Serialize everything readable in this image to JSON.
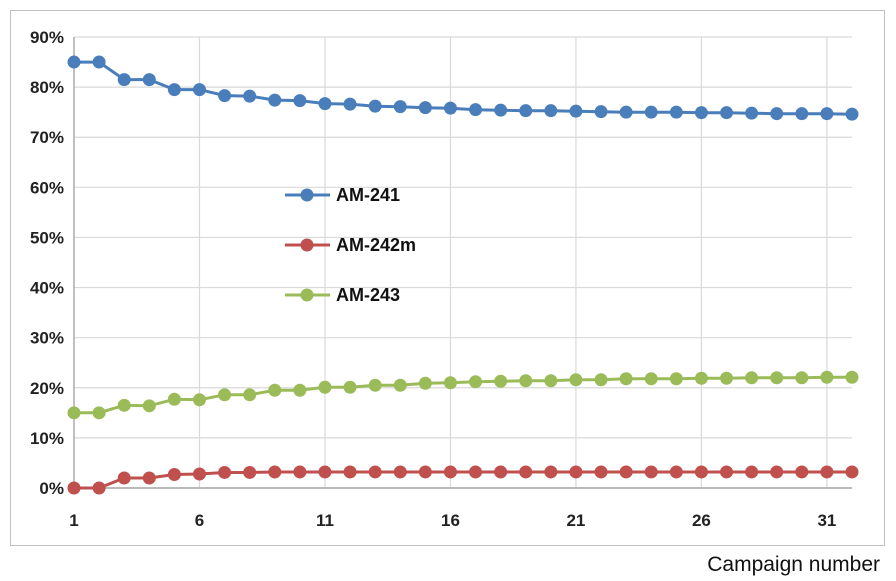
{
  "chart_data": {
    "type": "line",
    "xlabel": "Campaign number",
    "ylabel": "",
    "x": [
      1,
      2,
      3,
      4,
      5,
      6,
      7,
      8,
      9,
      10,
      11,
      12,
      13,
      14,
      15,
      16,
      17,
      18,
      19,
      20,
      21,
      22,
      23,
      24,
      25,
      26,
      27,
      28,
      29,
      30,
      31,
      32
    ],
    "xticks": [
      1,
      6,
      11,
      16,
      21,
      26,
      31
    ],
    "xlim": [
      1,
      32
    ],
    "ylim": [
      0,
      90
    ],
    "yticks": [
      0,
      10,
      20,
      30,
      40,
      50,
      60,
      70,
      80,
      90
    ],
    "ytick_labels": [
      "0%",
      "10%",
      "20%",
      "30%",
      "40%",
      "50%",
      "60%",
      "70%",
      "80%",
      "90%"
    ],
    "grid": true,
    "legend_position": "center-left",
    "series": [
      {
        "name": "AM-241",
        "color": "#4a7ebb",
        "values": [
          85.0,
          85.0,
          81.5,
          81.5,
          79.5,
          79.5,
          78.3,
          78.2,
          77.4,
          77.3,
          76.7,
          76.6,
          76.2,
          76.1,
          75.9,
          75.8,
          75.5,
          75.4,
          75.3,
          75.3,
          75.2,
          75.1,
          75.0,
          75.0,
          75.0,
          74.9,
          74.9,
          74.8,
          74.7,
          74.7,
          74.7,
          74.6
        ]
      },
      {
        "name": "AM-242m",
        "color": "#c0504d",
        "values": [
          0.0,
          0.0,
          2.0,
          2.0,
          2.7,
          2.8,
          3.1,
          3.1,
          3.2,
          3.2,
          3.2,
          3.2,
          3.2,
          3.2,
          3.2,
          3.2,
          3.2,
          3.2,
          3.2,
          3.2,
          3.2,
          3.2,
          3.2,
          3.2,
          3.2,
          3.2,
          3.2,
          3.2,
          3.2,
          3.2,
          3.2,
          3.2
        ]
      },
      {
        "name": "AM-243",
        "color": "#9bbb59",
        "values": [
          15.0,
          15.0,
          16.5,
          16.4,
          17.7,
          17.6,
          18.6,
          18.6,
          19.5,
          19.5,
          20.1,
          20.1,
          20.5,
          20.5,
          20.9,
          21.0,
          21.2,
          21.3,
          21.4,
          21.4,
          21.6,
          21.6,
          21.8,
          21.8,
          21.8,
          21.9,
          21.9,
          22.0,
          22.0,
          22.0,
          22.1,
          22.1
        ]
      }
    ]
  }
}
